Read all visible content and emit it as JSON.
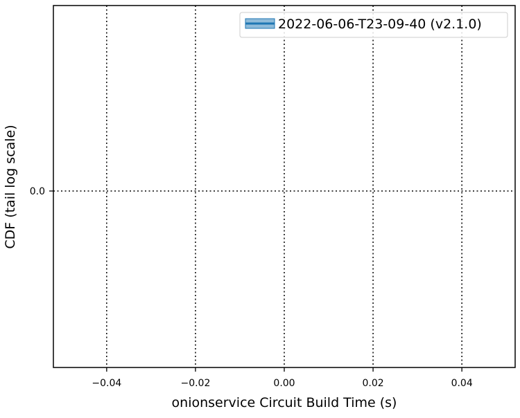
{
  "chart_data": {
    "type": "line",
    "title": "",
    "xlabel": "onionservice Circuit Build Time (s)",
    "ylabel": "CDF (tail log scale)",
    "xlim": [
      -0.052,
      0.052
    ],
    "x_ticks": [
      -0.04,
      -0.02,
      0.0,
      0.02,
      0.04
    ],
    "x_tick_labels": [
      "−0.04",
      "−0.02",
      "0.00",
      "0.02",
      "0.04"
    ],
    "y_ticks": [
      0.0
    ],
    "y_tick_labels": [
      "0.0"
    ],
    "yscale": "tail log",
    "grid": true,
    "grid_style": "dotted",
    "legend_position": "top-right",
    "series": [
      {
        "name": "2022-06-06-T23-09-40 (v2.1.0)",
        "color": "#1f77b4",
        "x": [],
        "y": []
      }
    ]
  }
}
